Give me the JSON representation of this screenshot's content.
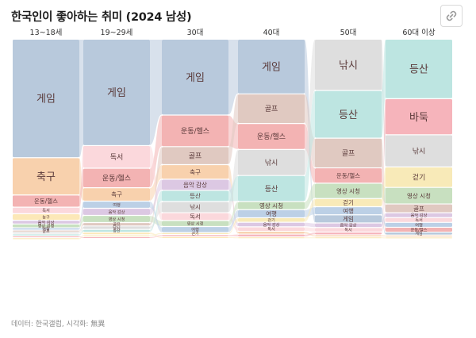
{
  "title": "한국인이 좋아하는 취미 (2024 남성)",
  "source": "데이터: 한국갤럽, 시각화: 無異",
  "link_button": "link-icon",
  "chart_data": {
    "type": "sankey-bump",
    "columns": [
      "13~18세",
      "19~29세",
      "30대",
      "40대",
      "50대",
      "60대 이상"
    ],
    "hobbies": [
      "게임",
      "축구",
      "운동/헬스",
      "독서",
      "농구",
      "음악 감상",
      "영상 시청",
      "여행",
      "골프",
      "낚시",
      "등산",
      "바둑",
      "걷기"
    ],
    "colors": {
      "게임": "#b8c9dc",
      "축구": "#f8d1ad",
      "운동/헬스": "#f3b3b3",
      "독서": "#fbd8dc",
      "농구": "#fce8b8",
      "음악 감상": "#dcc8e3",
      "영상 시청": "#c8e0c0",
      "여행": "#bcd0e6",
      "골프": "#e0c9c1",
      "낚시": "#dedede",
      "등산": "#bde5e1",
      "바둑": "#f6b4bb",
      "걷기": "#f8eab8"
    },
    "values": {
      "13~18세": {
        "게임": 42,
        "축구": 13,
        "운동/헬스": 4,
        "독서": 2,
        "농구": 2,
        "음악 감상": 1,
        "영상 시청": 1,
        "여행": 0.5,
        "골프": 0.3,
        "낚시": 0.3,
        "등산": 0.3,
        "바둑": 0.2,
        "걷기": 0.2
      },
      "19~29세": {
        "게임": 34,
        "운동/헬스": 6,
        "독서": 7,
        "축구": 4,
        "여행": 2,
        "음악 감상": 2,
        "영상 시청": 2,
        "골프": 0.8,
        "낚시": 0.8,
        "등산": 0.6,
        "농구": 0.5,
        "걷기": 0.3,
        "바둑": 0.3
      },
      "30대": {
        "게임": 22,
        "운동/헬스": 9,
        "축구": 4,
        "골프": 5,
        "음악 감상": 3,
        "등산": 3,
        "낚시": 3,
        "독서": 2,
        "영상 시청": 1.5,
        "여행": 1.5,
        "걷기": 0.3,
        "바둑": 0.3,
        "농구": 0.3
      },
      "40대": {
        "게임": 15,
        "운동/헬스": 7,
        "골프": 8,
        "낚시": 7,
        "등산": 7,
        "영상 시청": 2,
        "여행": 2,
        "걷기": 1,
        "음악 감상": 1,
        "독서": 1,
        "축구": 0.5,
        "바둑": 0.5,
        "농구": 0.2
      },
      "50대": {
        "낚시": 14,
        "등산": 13,
        "골프": 8,
        "운동/헬스": 4,
        "영상 시청": 4,
        "걷기": 2,
        "여행": 2,
        "게임": 2,
        "음악 감상": 1,
        "독서": 1,
        "바둑": 0.5,
        "축구": 0.3,
        "농구": 0.2
      },
      "60대 이상": {
        "등산": 15,
        "바둑": 9,
        "낚시": 8,
        "걷기": 5,
        "영상 시청": 4,
        "골프": 2,
        "음악 감상": 1,
        "독서": 1,
        "여행": 1,
        "운동/헬스": 1,
        "게임": 0.5,
        "축구": 0.2,
        "농구": 0.2
      }
    },
    "labels": {
      "13~18세": [
        [
          "게임",
          "게임"
        ],
        [
          "축구",
          "축구"
        ],
        [
          "운동/헬스",
          "운동/헬스"
        ],
        [
          "독서",
          "독서"
        ],
        [
          "농구",
          "농구"
        ],
        [
          "음악 감상",
          "음악 감상"
        ],
        [
          "영상 시청",
          "영상 시청"
        ],
        [
          "여행",
          "여행"
        ],
        [
          "골프",
          "골프"
        ]
      ],
      "19~29세": [
        [
          "게임",
          "게임"
        ],
        [
          "운동/헬스",
          "운동/헬스"
        ],
        [
          "독서",
          "독서"
        ],
        [
          "축구",
          "축구"
        ],
        [
          "여행",
          "여행"
        ],
        [
          "음악 감상",
          "음악 감상"
        ],
        [
          "영상 시청",
          "영상 시청"
        ],
        [
          "골프",
          "골프"
        ],
        [
          "낚시",
          "낚시"
        ],
        [
          "등산",
          "등산"
        ]
      ],
      "30대": [
        [
          "게임",
          "게임"
        ],
        [
          "운동/헬스",
          "운동/헬스"
        ],
        [
          "축구",
          "축구"
        ],
        [
          "골프",
          "골프"
        ],
        [
          "음악 감상",
          "음악 감상"
        ],
        [
          "등산",
          "등산"
        ],
        [
          "낚시",
          "낚시"
        ],
        [
          "독서",
          "독서"
        ],
        [
          "영상 시청",
          "영상 시청"
        ],
        [
          "여행",
          "여행"
        ],
        [
          "걷기",
          "걷기"
        ]
      ],
      "40대": [
        [
          "게임",
          "게임"
        ],
        [
          "운동/헬스",
          "운동/헬스"
        ],
        [
          "골프",
          "골프"
        ],
        [
          "낚시",
          "낚시"
        ],
        [
          "등산",
          "등산"
        ],
        [
          "영상 시청",
          "영상 시청"
        ],
        [
          "여행",
          "여행"
        ],
        [
          "걷기",
          "걷기"
        ],
        [
          "음악 감상",
          "음악 감상"
        ],
        [
          "독서",
          "독서"
        ]
      ],
      "50대": [
        [
          "낚시",
          "낚시"
        ],
        [
          "등산",
          "등산"
        ],
        [
          "골프",
          "골프"
        ],
        [
          "운동/헬스",
          "운동/헬스"
        ],
        [
          "영상 시청",
          "영상 시청"
        ],
        [
          "걷기",
          "걷기"
        ],
        [
          "여행",
          "여행"
        ],
        [
          "게임",
          "게임"
        ],
        [
          "음악 감상",
          "음악 감상"
        ],
        [
          "독서",
          "독서"
        ]
      ],
      "60대 이상": [
        [
          "등산",
          "등산"
        ],
        [
          "바둑",
          "바둑"
        ],
        [
          "낚시",
          "낚시"
        ],
        [
          "걷기",
          "걷기"
        ],
        [
          "영상 시청",
          "영상 시청"
        ],
        [
          "골프",
          "골프"
        ],
        [
          "음악 감상",
          "음악 감상"
        ],
        [
          "독서",
          "독서"
        ],
        [
          "여행",
          "여행"
        ],
        [
          "운동/헬스",
          "운동/헬스"
        ],
        [
          "게임",
          "게임"
        ]
      ]
    }
  }
}
